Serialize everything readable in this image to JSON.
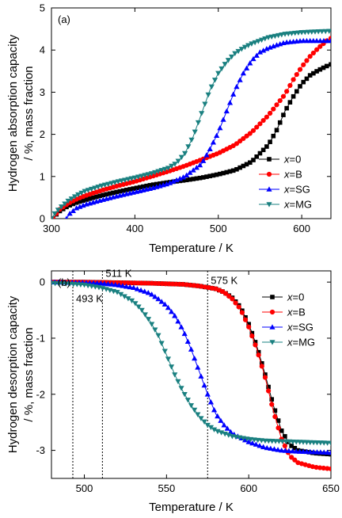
{
  "chart_data": [
    {
      "type": "line",
      "panel_label": "(a)",
      "xlabel": "Temperature / K",
      "ylabel_lines": [
        "Hydrogen absorption capacity",
        "/ %, mass fraction"
      ],
      "xlim": [
        300,
        635
      ],
      "ylim": [
        0,
        5
      ],
      "x_ticks": [
        300,
        400,
        500,
        600
      ],
      "y_ticks": [
        0,
        1,
        2,
        3,
        4,
        5
      ],
      "legend_placement": "lower-right",
      "series": [
        {
          "name": "x=0",
          "legend_var": "x",
          "legend_val": "=0",
          "color": "#000000",
          "marker": "square",
          "points": [
            [
              302,
              0
            ],
            [
              306,
              0.1
            ],
            [
              310,
              0.18
            ],
            [
              320,
              0.3
            ],
            [
              330,
              0.38
            ],
            [
              340,
              0.44
            ],
            [
              360,
              0.55
            ],
            [
              380,
              0.64
            ],
            [
              400,
              0.72
            ],
            [
              420,
              0.8
            ],
            [
              440,
              0.86
            ],
            [
              460,
              0.91
            ],
            [
              480,
              0.97
            ],
            [
              500,
              1.05
            ],
            [
              520,
              1.15
            ],
            [
              540,
              1.35
            ],
            [
              560,
              1.75
            ],
            [
              570,
              2.1
            ],
            [
              580,
              2.55
            ],
            [
              590,
              2.9
            ],
            [
              600,
              3.2
            ],
            [
              610,
              3.4
            ],
            [
              620,
              3.52
            ],
            [
              630,
              3.62
            ],
            [
              635,
              3.66
            ]
          ]
        },
        {
          "name": "x=B",
          "legend_var": "x",
          "legend_val": "=B",
          "color": "#ff0000",
          "marker": "circle",
          "points": [
            [
              302,
              0
            ],
            [
              306,
              0.12
            ],
            [
              310,
              0.22
            ],
            [
              320,
              0.36
            ],
            [
              330,
              0.46
            ],
            [
              340,
              0.54
            ],
            [
              360,
              0.67
            ],
            [
              380,
              0.78
            ],
            [
              400,
              0.88
            ],
            [
              420,
              1.0
            ],
            [
              440,
              1.12
            ],
            [
              460,
              1.25
            ],
            [
              480,
              1.4
            ],
            [
              500,
              1.55
            ],
            [
              520,
              1.75
            ],
            [
              540,
              2.05
            ],
            [
              560,
              2.45
            ],
            [
              570,
              2.7
            ],
            [
              580,
              2.95
            ],
            [
              590,
              3.3
            ],
            [
              600,
              3.6
            ],
            [
              610,
              3.85
            ],
            [
              620,
              4.05
            ],
            [
              630,
              4.22
            ],
            [
              635,
              4.28
            ]
          ]
        },
        {
          "name": "x=SG",
          "legend_var": "x",
          "legend_val": "=SG",
          "color": "#0000ff",
          "marker": "triangle-up",
          "points": [
            [
              318,
              0
            ],
            [
              322,
              0.12
            ],
            [
              330,
              0.25
            ],
            [
              340,
              0.33
            ],
            [
              360,
              0.44
            ],
            [
              380,
              0.54
            ],
            [
              400,
              0.63
            ],
            [
              420,
              0.72
            ],
            [
              440,
              0.83
            ],
            [
              460,
              1.0
            ],
            [
              480,
              1.3
            ],
            [
              490,
              1.65
            ],
            [
              500,
              2.05
            ],
            [
              510,
              2.55
            ],
            [
              520,
              3.05
            ],
            [
              530,
              3.45
            ],
            [
              540,
              3.75
            ],
            [
              550,
              3.95
            ],
            [
              560,
              4.05
            ],
            [
              570,
              4.12
            ],
            [
              580,
              4.18
            ],
            [
              600,
              4.22
            ],
            [
              620,
              4.22
            ],
            [
              635,
              4.22
            ]
          ]
        },
        {
          "name": "x=MG",
          "legend_var": "x",
          "legend_val": "=MG",
          "color": "#1a8080",
          "marker": "triangle-down",
          "points": [
            [
              300,
              0
            ],
            [
              304,
              0.12
            ],
            [
              310,
              0.25
            ],
            [
              320,
              0.42
            ],
            [
              330,
              0.55
            ],
            [
              340,
              0.65
            ],
            [
              360,
              0.78
            ],
            [
              380,
              0.88
            ],
            [
              400,
              0.97
            ],
            [
              420,
              1.07
            ],
            [
              440,
              1.2
            ],
            [
              450,
              1.32
            ],
            [
              460,
              1.55
            ],
            [
              470,
              1.95
            ],
            [
              480,
              2.5
            ],
            [
              490,
              3.05
            ],
            [
              500,
              3.45
            ],
            [
              510,
              3.72
            ],
            [
              520,
              3.92
            ],
            [
              530,
              4.05
            ],
            [
              540,
              4.15
            ],
            [
              560,
              4.3
            ],
            [
              580,
              4.38
            ],
            [
              600,
              4.42
            ],
            [
              620,
              4.44
            ],
            [
              635,
              4.45
            ]
          ]
        }
      ]
    },
    {
      "type": "line",
      "panel_label": "(b)",
      "xlabel": "Temperature / K",
      "ylabel_lines": [
        "Hydrogen desorption capacity",
        "/ %, mass fraction"
      ],
      "xlim": [
        480,
        650
      ],
      "ylim": [
        -3.5,
        0.2
      ],
      "x_ticks": [
        500,
        550,
        600,
        650
      ],
      "y_ticks": [
        0,
        -1,
        -2,
        -3
      ],
      "legend_placement": "top-right",
      "annotations": [
        {
          "x": 493,
          "label": "493 K",
          "label_y": -0.3
        },
        {
          "x": 511,
          "label": "511 K",
          "label_y": 0.15
        },
        {
          "x": 575,
          "label": "575 K",
          "label_y": 0.02
        }
      ],
      "series": [
        {
          "name": "x=0",
          "legend_var": "x",
          "legend_val": "=0",
          "color": "#000000",
          "marker": "square",
          "points": [
            [
              480,
              0
            ],
            [
              500,
              0
            ],
            [
              520,
              -0.01
            ],
            [
              540,
              -0.02
            ],
            [
              560,
              -0.04
            ],
            [
              570,
              -0.07
            ],
            [
              580,
              -0.12
            ],
            [
              585,
              -0.18
            ],
            [
              590,
              -0.28
            ],
            [
              595,
              -0.45
            ],
            [
              600,
              -0.75
            ],
            [
              605,
              -1.15
            ],
            [
              610,
              -1.65
            ],
            [
              615,
              -2.2
            ],
            [
              620,
              -2.65
            ],
            [
              625,
              -2.9
            ],
            [
              630,
              -3.0
            ],
            [
              640,
              -3.05
            ],
            [
              650,
              -3.07
            ]
          ]
        },
        {
          "name": "x=B",
          "legend_var": "x",
          "legend_val": "=B",
          "color": "#ff0000",
          "marker": "circle",
          "points": [
            [
              480,
              0
            ],
            [
              500,
              0
            ],
            [
              520,
              -0.01
            ],
            [
              540,
              -0.02
            ],
            [
              560,
              -0.04
            ],
            [
              570,
              -0.07
            ],
            [
              580,
              -0.12
            ],
            [
              585,
              -0.18
            ],
            [
              590,
              -0.3
            ],
            [
              595,
              -0.48
            ],
            [
              600,
              -0.8
            ],
            [
              605,
              -1.2
            ],
            [
              610,
              -1.7
            ],
            [
              615,
              -2.3
            ],
            [
              620,
              -2.8
            ],
            [
              625,
              -3.1
            ],
            [
              630,
              -3.22
            ],
            [
              640,
              -3.3
            ],
            [
              650,
              -3.33
            ]
          ]
        },
        {
          "name": "x=SG",
          "legend_var": "x",
          "legend_val": "=SG",
          "color": "#0000ff",
          "marker": "triangle-up",
          "points": [
            [
              480,
              0
            ],
            [
              500,
              -0.01
            ],
            [
              510,
              -0.02
            ],
            [
              520,
              -0.05
            ],
            [
              530,
              -0.1
            ],
            [
              540,
              -0.2
            ],
            [
              545,
              -0.3
            ],
            [
              550,
              -0.42
            ],
            [
              555,
              -0.6
            ],
            [
              560,
              -0.85
            ],
            [
              565,
              -1.2
            ],
            [
              570,
              -1.6
            ],
            [
              575,
              -2.0
            ],
            [
              580,
              -2.35
            ],
            [
              585,
              -2.55
            ],
            [
              590,
              -2.7
            ],
            [
              600,
              -2.85
            ],
            [
              610,
              -2.95
            ],
            [
              620,
              -3.0
            ],
            [
              630,
              -3.02
            ],
            [
              650,
              -3.04
            ]
          ]
        },
        {
          "name": "x=MG",
          "legend_var": "x",
          "legend_val": "=MG",
          "color": "#1a8080",
          "marker": "triangle-down",
          "points": [
            [
              480,
              -0.02
            ],
            [
              490,
              -0.03
            ],
            [
              500,
              -0.05
            ],
            [
              510,
              -0.1
            ],
            [
              520,
              -0.18
            ],
            [
              530,
              -0.35
            ],
            [
              535,
              -0.5
            ],
            [
              540,
              -0.7
            ],
            [
              545,
              -0.95
            ],
            [
              550,
              -1.3
            ],
            [
              555,
              -1.65
            ],
            [
              560,
              -1.95
            ],
            [
              565,
              -2.2
            ],
            [
              570,
              -2.4
            ],
            [
              575,
              -2.55
            ],
            [
              580,
              -2.65
            ],
            [
              590,
              -2.75
            ],
            [
              600,
              -2.8
            ],
            [
              610,
              -2.83
            ],
            [
              630,
              -2.85
            ],
            [
              650,
              -2.87
            ]
          ]
        }
      ]
    }
  ]
}
